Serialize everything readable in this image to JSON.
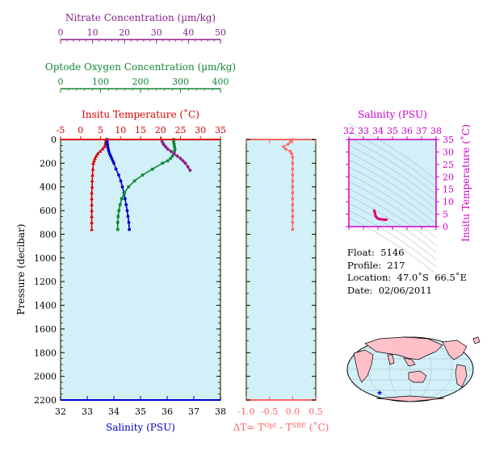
{
  "chart_data": [
    {
      "type": "scatter",
      "id": "main-profile",
      "ylabel": "Pressure (decibar)",
      "ylim": [
        2200,
        0
      ],
      "yticks": [
        0,
        200,
        400,
        600,
        800,
        1000,
        1200,
        1400,
        1600,
        1800,
        2000,
        2200
      ],
      "axes": {
        "salinity": {
          "label": "Salinity (PSU)",
          "lim": [
            32,
            38
          ],
          "ticks": [
            32,
            33,
            34,
            35,
            36,
            37,
            38
          ],
          "color": "#0000cc"
        },
        "temperature": {
          "label": "Insitu Temperature (˚C)",
          "lim": [
            -5,
            35
          ],
          "ticks": [
            -5,
            0,
            5,
            10,
            15,
            20,
            25,
            30,
            35
          ],
          "color": "#dd0000"
        },
        "oxygen": {
          "label": "Optode Oxygen Concentration (µm/kg)",
          "lim": [
            0,
            400
          ],
          "ticks": [
            0,
            100,
            200,
            300,
            400
          ],
          "color": "#118833"
        },
        "nitrate": {
          "label": "Nitrate Concentration (µm/kg)",
          "lim": [
            0,
            50
          ],
          "ticks": [
            0,
            10,
            20,
            30,
            40,
            50
          ],
          "color": "#882288"
        }
      },
      "series": [
        {
          "axis": "temperature",
          "marker": "triangle",
          "points": [
            [
              6.4,
              0
            ],
            [
              6.3,
              20
            ],
            [
              6.2,
              40
            ],
            [
              6.0,
              60
            ],
            [
              5.5,
              80
            ],
            [
              4.9,
              100
            ],
            [
              4.3,
              120
            ],
            [
              3.9,
              140
            ],
            [
              3.6,
              160
            ],
            [
              3.4,
              180
            ],
            [
              3.2,
              200
            ],
            [
              3.1,
              250
            ],
            [
              3.0,
              300
            ],
            [
              2.9,
              350
            ],
            [
              2.9,
              400
            ],
            [
              2.8,
              450
            ],
            [
              2.8,
              500
            ],
            [
              2.8,
              550
            ],
            [
              2.8,
              600
            ],
            [
              2.8,
              650
            ],
            [
              2.8,
              700
            ],
            [
              2.8,
              760
            ]
          ]
        },
        {
          "axis": "salinity",
          "marker": "circle",
          "points": [
            [
              33.75,
              0
            ],
            [
              33.75,
              20
            ],
            [
              33.76,
              40
            ],
            [
              33.77,
              60
            ],
            [
              33.79,
              80
            ],
            [
              33.81,
              100
            ],
            [
              33.84,
              120
            ],
            [
              33.88,
              140
            ],
            [
              33.92,
              160
            ],
            [
              33.96,
              180
            ],
            [
              34.0,
              200
            ],
            [
              34.08,
              250
            ],
            [
              34.18,
              300
            ],
            [
              34.26,
              350
            ],
            [
              34.32,
              400
            ],
            [
              34.38,
              450
            ],
            [
              34.42,
              500
            ],
            [
              34.46,
              550
            ],
            [
              34.5,
              600
            ],
            [
              34.53,
              650
            ],
            [
              34.56,
              700
            ],
            [
              34.58,
              760
            ]
          ]
        },
        {
          "axis": "oxygen",
          "marker": "square",
          "points": [
            [
              283,
              0
            ],
            [
              283,
              20
            ],
            [
              284,
              40
            ],
            [
              285,
              60
            ],
            [
              286,
              80
            ],
            [
              285,
              100
            ],
            [
              283,
              120
            ],
            [
              280,
              140
            ],
            [
              275,
              160
            ],
            [
              268,
              180
            ],
            [
              255,
              200
            ],
            [
              230,
              250
            ],
            [
              205,
              300
            ],
            [
              185,
              350
            ],
            [
              170,
              400
            ],
            [
              160,
              450
            ],
            [
              153,
              500
            ],
            [
              149,
              550
            ],
            [
              146,
              600
            ],
            [
              144,
              650
            ],
            [
              143,
              700
            ],
            [
              143,
              760
            ]
          ]
        },
        {
          "axis": "nitrate",
          "marker": "diamond",
          "points": [
            [
              31.5,
              0
            ],
            [
              31.8,
              20
            ],
            [
              32.2,
              40
            ],
            [
              32.8,
              60
            ],
            [
              33.5,
              80
            ],
            [
              34.5,
              100
            ],
            [
              35.5,
              120
            ],
            [
              36.5,
              140
            ],
            [
              37.5,
              160
            ],
            [
              38.3,
              180
            ],
            [
              39.0,
              200
            ],
            [
              39.8,
              230
            ],
            [
              40.5,
              260
            ]
          ]
        }
      ]
    },
    {
      "type": "scatter",
      "id": "delta-t",
      "xlabel": "ΔT= T",
      "xlabel_sup1": "Opt",
      "xlabel_mid": " - T",
      "xlabel_sup2": "SBE",
      "xlabel_tail": " (˚C)",
      "xlim": [
        -1.0,
        0.5
      ],
      "xticks": [
        -1.0,
        -0.5,
        0.0,
        0.5
      ],
      "xticklabels": [
        "-1.0",
        "-0.5",
        "0.0",
        "0.5"
      ],
      "ylim": [
        2200,
        0
      ],
      "color": "#ff6666",
      "points": [
        [
          0.0,
          0
        ],
        [
          -0.05,
          20
        ],
        [
          -0.1,
          40
        ],
        [
          -0.2,
          60
        ],
        [
          -0.15,
          80
        ],
        [
          -0.05,
          100
        ],
        [
          -0.02,
          120
        ],
        [
          0.0,
          150
        ],
        [
          0.0,
          200
        ],
        [
          0.0,
          250
        ],
        [
          0.0,
          300
        ],
        [
          0.0,
          350
        ],
        [
          0.0,
          400
        ],
        [
          0.0,
          450
        ],
        [
          0.0,
          500
        ],
        [
          0.0,
          550
        ],
        [
          0.0,
          600
        ],
        [
          0.0,
          650
        ],
        [
          0.0,
          700
        ],
        [
          0.0,
          760
        ]
      ]
    },
    {
      "type": "scatter",
      "id": "ts-diagram",
      "xlabel": "Salinity (PSU)",
      "ylabel": "Insitu Temperature (˚C)",
      "xlim": [
        32,
        38
      ],
      "ylim": [
        0,
        35
      ],
      "xticks": [
        32,
        33,
        34,
        35,
        36,
        37,
        38
      ],
      "yticks": [
        0,
        5,
        10,
        15,
        20,
        25,
        30,
        35
      ],
      "color": "#dd0077",
      "points": [
        [
          33.75,
          6.4
        ],
        [
          33.76,
          6.2
        ],
        [
          33.79,
          5.5
        ],
        [
          33.81,
          4.9
        ],
        [
          33.84,
          4.3
        ],
        [
          33.88,
          3.9
        ],
        [
          33.92,
          3.6
        ],
        [
          34.0,
          3.2
        ],
        [
          34.08,
          3.1
        ],
        [
          34.18,
          3.0
        ],
        [
          34.32,
          2.9
        ],
        [
          34.42,
          2.8
        ],
        [
          34.5,
          2.8
        ],
        [
          34.58,
          2.8
        ]
      ]
    }
  ],
  "info": {
    "float": "Float:  5146",
    "profile": "Profile:  217",
    "location": "Location:  47.0˚S  66.5˚E",
    "date": "Date:  02/06/2011"
  },
  "map": {
    "marker_lat": -47.0,
    "marker_lon": 66.5,
    "marker_color": "#0000cc",
    "land_color": "#ffc0c8",
    "ocean_color": "#d2f0f8"
  },
  "colors": {
    "panel_bg": "#d2f0f8",
    "frame": "#556622"
  }
}
